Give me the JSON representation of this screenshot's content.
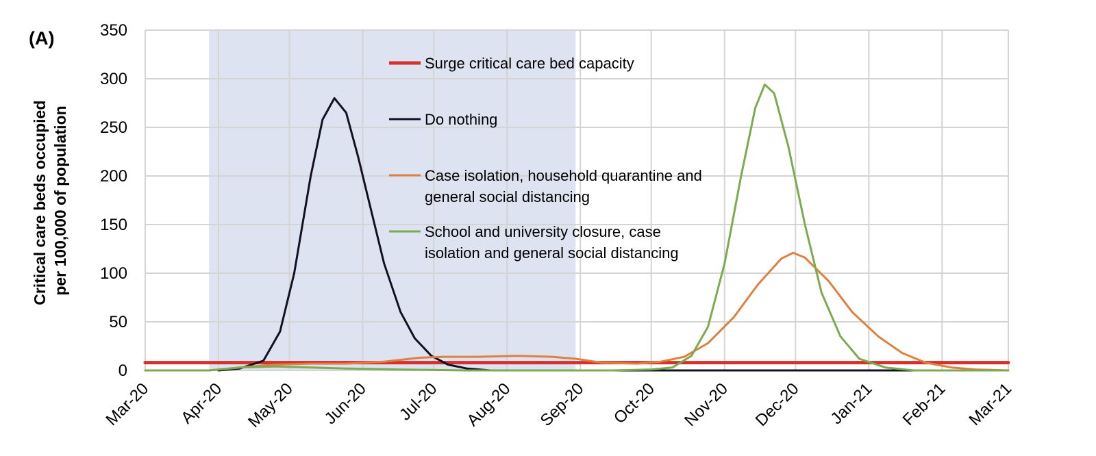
{
  "chart_data": {
    "type": "line",
    "panel_label": "(A)",
    "ylabel_lines": [
      "Critical care beds occupied",
      "per 100,000 of population"
    ],
    "xlabel": "",
    "ylim": [
      0,
      350
    ],
    "yticks": [
      0,
      50,
      100,
      150,
      200,
      250,
      300,
      350
    ],
    "xlim": [
      "2020-03-01",
      "2021-03-01"
    ],
    "xticks": [
      {
        "date": "2020-03-01",
        "label": "Mar-20"
      },
      {
        "date": "2020-04-01",
        "label": "Apr-20"
      },
      {
        "date": "2020-05-01",
        "label": "May-20"
      },
      {
        "date": "2020-06-01",
        "label": "Jun-20"
      },
      {
        "date": "2020-07-01",
        "label": "Jul-20"
      },
      {
        "date": "2020-08-01",
        "label": "Aug-20"
      },
      {
        "date": "2020-09-01",
        "label": "Sep-20"
      },
      {
        "date": "2020-10-01",
        "label": "Oct-20"
      },
      {
        "date": "2020-11-01",
        "label": "Nov-20"
      },
      {
        "date": "2020-12-01",
        "label": "Dec-20"
      },
      {
        "date": "2021-01-01",
        "label": "Jan-21"
      },
      {
        "date": "2021-02-01",
        "label": "Feb-21"
      },
      {
        "date": "2021-03-01",
        "label": "Mar-21"
      }
    ],
    "grid": true,
    "legend_position": "top-center",
    "shaded_region": {
      "start": "2020-03-28",
      "end": "2020-08-30",
      "color": "#dde3f0"
    },
    "series": [
      {
        "name": "Surge critical care bed capacity",
        "color": "#d9302c",
        "width": 5,
        "points": [
          [
            "2020-03-01",
            8
          ],
          [
            "2021-03-01",
            8
          ]
        ]
      },
      {
        "name": "Do nothing",
        "color": "#111122",
        "width": 3,
        "points": [
          [
            "2020-04-01",
            0
          ],
          [
            "2020-04-10",
            2
          ],
          [
            "2020-04-20",
            10
          ],
          [
            "2020-04-27",
            40
          ],
          [
            "2020-05-03",
            100
          ],
          [
            "2020-05-10",
            200
          ],
          [
            "2020-05-15",
            258
          ],
          [
            "2020-05-20",
            280
          ],
          [
            "2020-05-25",
            265
          ],
          [
            "2020-05-30",
            220
          ],
          [
            "2020-06-05",
            160
          ],
          [
            "2020-06-10",
            110
          ],
          [
            "2020-06-17",
            60
          ],
          [
            "2020-06-23",
            33
          ],
          [
            "2020-06-30",
            15
          ],
          [
            "2020-07-07",
            6
          ],
          [
            "2020-07-15",
            2
          ],
          [
            "2020-07-25",
            0
          ],
          [
            "2020-10-01",
            0
          ],
          [
            "2021-02-01",
            0
          ]
        ]
      },
      {
        "name": "Case isolation, household quarantine and general social distancing",
        "color": "#dd8040",
        "width": 3,
        "points": [
          [
            "2020-03-01",
            0
          ],
          [
            "2020-03-28",
            0
          ],
          [
            "2020-04-10",
            3
          ],
          [
            "2020-04-25",
            6
          ],
          [
            "2020-05-10",
            7
          ],
          [
            "2020-05-25",
            7
          ],
          [
            "2020-06-10",
            9
          ],
          [
            "2020-06-25",
            13
          ],
          [
            "2020-07-05",
            14
          ],
          [
            "2020-07-20",
            14
          ],
          [
            "2020-08-05",
            15
          ],
          [
            "2020-08-20",
            14
          ],
          [
            "2020-08-30",
            12
          ],
          [
            "2020-09-10",
            8
          ],
          [
            "2020-09-25",
            7
          ],
          [
            "2020-10-05",
            9
          ],
          [
            "2020-10-15",
            14
          ],
          [
            "2020-10-25",
            28
          ],
          [
            "2020-11-05",
            55
          ],
          [
            "2020-11-15",
            88
          ],
          [
            "2020-11-25",
            115
          ],
          [
            "2020-11-30",
            121
          ],
          [
            "2020-12-05",
            116
          ],
          [
            "2020-12-15",
            92
          ],
          [
            "2020-12-25",
            60
          ],
          [
            "2021-01-05",
            35
          ],
          [
            "2021-01-15",
            18
          ],
          [
            "2021-01-25",
            8
          ],
          [
            "2021-02-05",
            3
          ],
          [
            "2021-02-15",
            1
          ],
          [
            "2021-03-01",
            0
          ]
        ]
      },
      {
        "name": "School and university closure, case isolation and general social distancing",
        "color": "#7aab4e",
        "width": 3,
        "points": [
          [
            "2020-03-01",
            0
          ],
          [
            "2020-03-28",
            0
          ],
          [
            "2020-04-10",
            3
          ],
          [
            "2020-04-25",
            4
          ],
          [
            "2020-05-10",
            3
          ],
          [
            "2020-05-25",
            2
          ],
          [
            "2020-06-15",
            1
          ],
          [
            "2020-07-15",
            0
          ],
          [
            "2020-09-15",
            0
          ],
          [
            "2020-10-01",
            1
          ],
          [
            "2020-10-10",
            3
          ],
          [
            "2020-10-18",
            15
          ],
          [
            "2020-10-25",
            45
          ],
          [
            "2020-11-01",
            110
          ],
          [
            "2020-11-08",
            200
          ],
          [
            "2020-11-14",
            270
          ],
          [
            "2020-11-18",
            294
          ],
          [
            "2020-11-22",
            285
          ],
          [
            "2020-11-28",
            230
          ],
          [
            "2020-12-05",
            150
          ],
          [
            "2020-12-12",
            80
          ],
          [
            "2020-12-20",
            35
          ],
          [
            "2020-12-28",
            12
          ],
          [
            "2021-01-08",
            3
          ],
          [
            "2021-01-20",
            0
          ],
          [
            "2021-03-01",
            0
          ]
        ]
      }
    ],
    "legend_entries": [
      {
        "lines": [
          "Surge critical care bed capacity"
        ],
        "color": "#d9302c"
      },
      {
        "lines": [
          "Do nothing"
        ],
        "color": "#111122"
      },
      {
        "lines": [
          "Case isolation, household quarantine and",
          "general social distancing"
        ],
        "color": "#dd8040"
      },
      {
        "lines": [
          "School and university closure, case",
          "isolation and general social distancing"
        ],
        "color": "#7aab4e"
      }
    ]
  }
}
